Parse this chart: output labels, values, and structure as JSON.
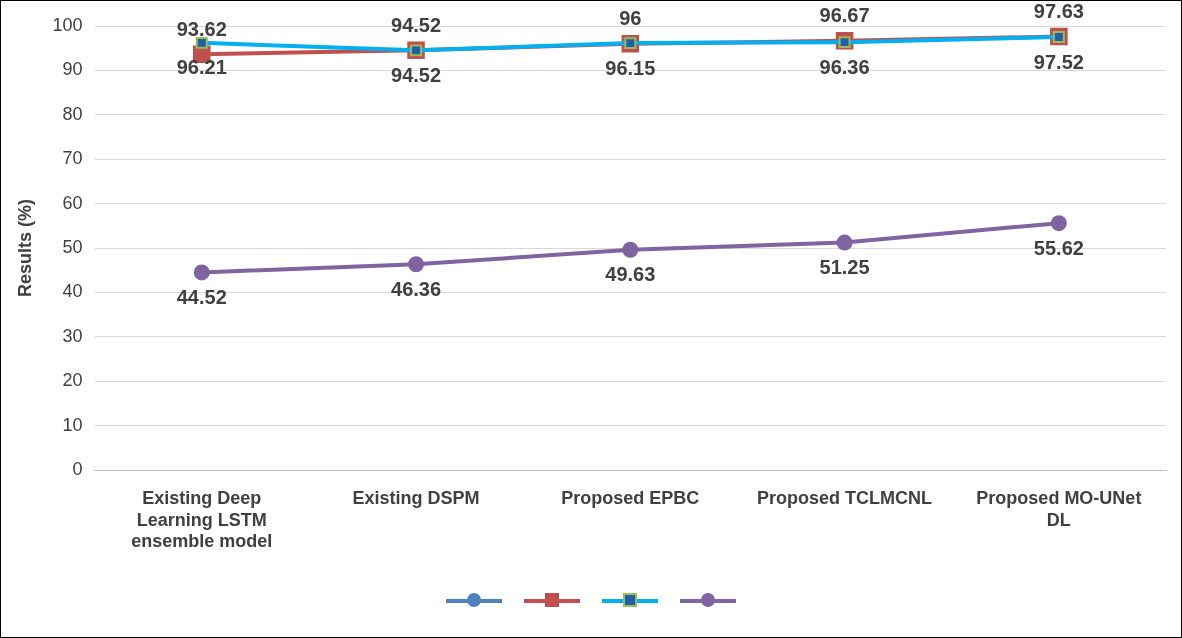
{
  "chart_data": {
    "type": "line",
    "ylabel": "Results (%)",
    "categories": [
      "Existing Deep Learning LSTM ensemble model",
      "Existing DSPM",
      "Proposed EPBC",
      "Proposed TCLMCNL",
      "Proposed MO-UNet DL"
    ],
    "series": [
      {
        "color": "#4f81bd",
        "marker": "circle",
        "values": [
          null,
          null,
          null,
          null,
          null
        ]
      },
      {
        "color": "#c0504d",
        "marker": "square",
        "values": [
          93.62,
          94.52,
          96,
          96.67,
          97.63
        ]
      },
      {
        "color": "#00b0f0",
        "marker": "square",
        "values": [
          96.21,
          94.52,
          96.15,
          96.36,
          97.52
        ]
      },
      {
        "color": "#8064a2",
        "marker": "circle",
        "values": [
          44.52,
          46.36,
          49.63,
          51.25,
          55.62
        ]
      }
    ],
    "ylim": [
      0,
      100
    ],
    "yticks": [
      0,
      10,
      20,
      30,
      40,
      50,
      60,
      70,
      80,
      90,
      100
    ],
    "grid": "y",
    "data_labels": true,
    "line_style": "solid"
  }
}
